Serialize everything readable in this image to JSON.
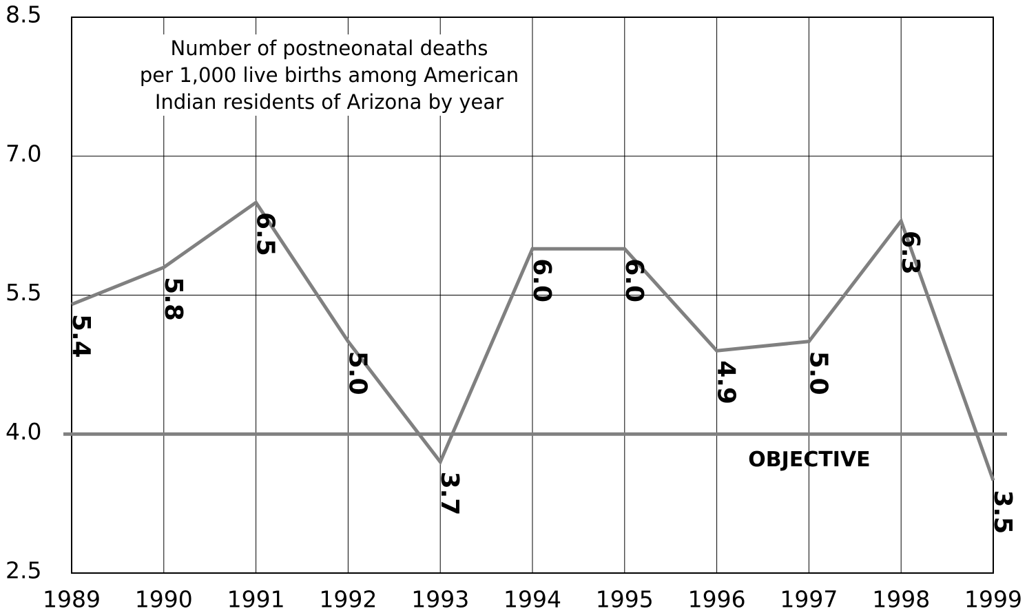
{
  "chart_data": {
    "type": "line",
    "title": [
      "Number of postneonatal deaths",
      "per 1,000 live births among American",
      "Indian residents of Arizona by year"
    ],
    "x": [
      1989,
      1990,
      1991,
      1992,
      1993,
      1994,
      1995,
      1996,
      1997,
      1998,
      1999
    ],
    "xlim": [
      1989,
      1999
    ],
    "xticks": [
      1989,
      1990,
      1991,
      1992,
      1993,
      1994,
      1995,
      1996,
      1997,
      1998,
      1999
    ],
    "series": [
      {
        "color": "#808080",
        "values": [
          5.4,
          5.8,
          6.5,
          5.0,
          3.7,
          6.0,
          6.0,
          4.9,
          5.0,
          6.3,
          3.5
        ],
        "value_labels": [
          "5.4",
          "5.8",
          "6.5",
          "5.0",
          "3.7",
          "6.0",
          "6.0",
          "4.9",
          "5.0",
          "6.3",
          "3.5"
        ]
      }
    ],
    "ylim": [
      2.5,
      8.5
    ],
    "yticks": [
      2.5,
      {
        "value": 4,
        "label": "4.0"
      },
      5.5,
      {
        "value": 7,
        "label": "7.0"
      },
      8.5
    ],
    "grid": true,
    "objective": {
      "value": 4,
      "label": "OBJECTIVE"
    }
  }
}
